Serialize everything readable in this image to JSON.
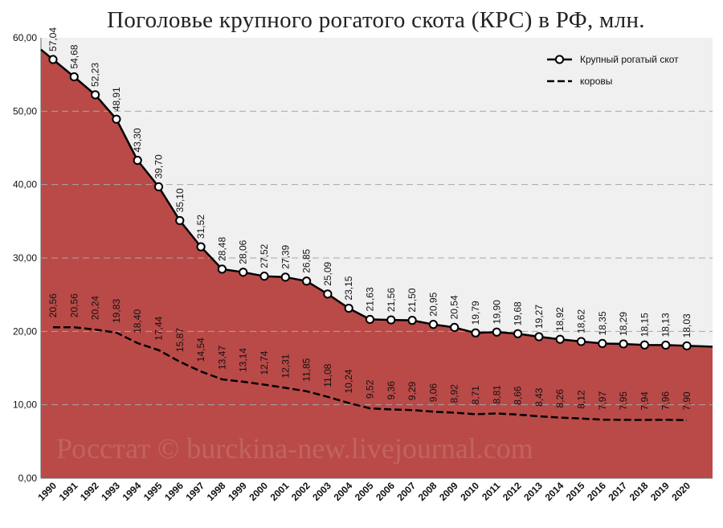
{
  "chart_data": {
    "type": "area",
    "title": "Поголовье крупного рогатого скота (КРС) в РФ, млн.",
    "watermark": "Росстат © burckina-new.livejournal.com",
    "xlabel": "",
    "ylabel": "",
    "ylim": [
      0,
      60
    ],
    "yticks": [
      "0,00",
      "10,00",
      "20,00",
      "30,00",
      "40,00",
      "50,00",
      "60,00"
    ],
    "grid": true,
    "legend_position": "top-right",
    "categories": [
      "1990",
      "1991",
      "1992",
      "1993",
      "1994",
      "1995",
      "1996",
      "1997",
      "1998",
      "1999",
      "2000",
      "2001",
      "2002",
      "2003",
      "2004",
      "2005",
      "2006",
      "2007",
      "2008",
      "2009",
      "2010",
      "2011",
      "2012",
      "2013",
      "2014",
      "2015",
      "2016",
      "2017",
      "2018",
      "2019",
      "2020"
    ],
    "series": [
      {
        "name": "Крупный рогатый скот",
        "style": "solid-markers",
        "color": "#000000",
        "fill": "#b94a48",
        "values": [
          57.04,
          54.68,
          52.23,
          48.91,
          43.3,
          39.7,
          35.1,
          31.52,
          28.48,
          28.06,
          27.52,
          27.39,
          26.85,
          25.09,
          23.15,
          21.63,
          21.56,
          21.5,
          20.95,
          20.54,
          19.79,
          19.9,
          19.68,
          19.27,
          18.92,
          18.62,
          18.35,
          18.29,
          18.15,
          18.13,
          18.03
        ],
        "labels": [
          "57,04",
          "54,68",
          "52,23",
          "48,91",
          "43,30",
          "39,70",
          "35,10",
          "31,52",
          "28,48",
          "28,06",
          "27,52",
          "27,39",
          "26,85",
          "25,09",
          "23,15",
          "21,63",
          "21,56",
          "21,50",
          "20,95",
          "20,54",
          "19,79",
          "19,90",
          "19,68",
          "19,27",
          "18,92",
          "18,62",
          "18,35",
          "18,29",
          "18,15",
          "18,13",
          "18,03"
        ]
      },
      {
        "name": "коровы",
        "style": "dashed",
        "color": "#000000",
        "values": [
          20.56,
          20.56,
          20.24,
          19.83,
          18.4,
          17.44,
          15.87,
          14.54,
          13.47,
          13.14,
          12.74,
          12.31,
          11.85,
          11.08,
          10.24,
          9.52,
          9.36,
          9.29,
          9.06,
          8.92,
          8.71,
          8.81,
          8.66,
          8.43,
          8.26,
          8.12,
          7.97,
          7.95,
          7.94,
          7.96,
          7.9
        ],
        "labels": [
          "20,56",
          "20,56",
          "20,24",
          "19,83",
          "18,40",
          "17,44",
          "15,87",
          "14,54",
          "13,47",
          "13,14",
          "12,74",
          "12,31",
          "11,85",
          "11,08",
          "10,24",
          "9,52",
          "9,36",
          "9,29",
          "9,06",
          "8,92",
          "8,71",
          "8,81",
          "8,66",
          "8,43",
          "8,26",
          "8,12",
          "7,97",
          "7,95",
          "7,94",
          "7,96",
          "7,90"
        ]
      }
    ],
    "colors": {
      "plot_bg": "#f0f0f0",
      "area": "#b94a48",
      "grid": "#a6a6a6"
    }
  }
}
